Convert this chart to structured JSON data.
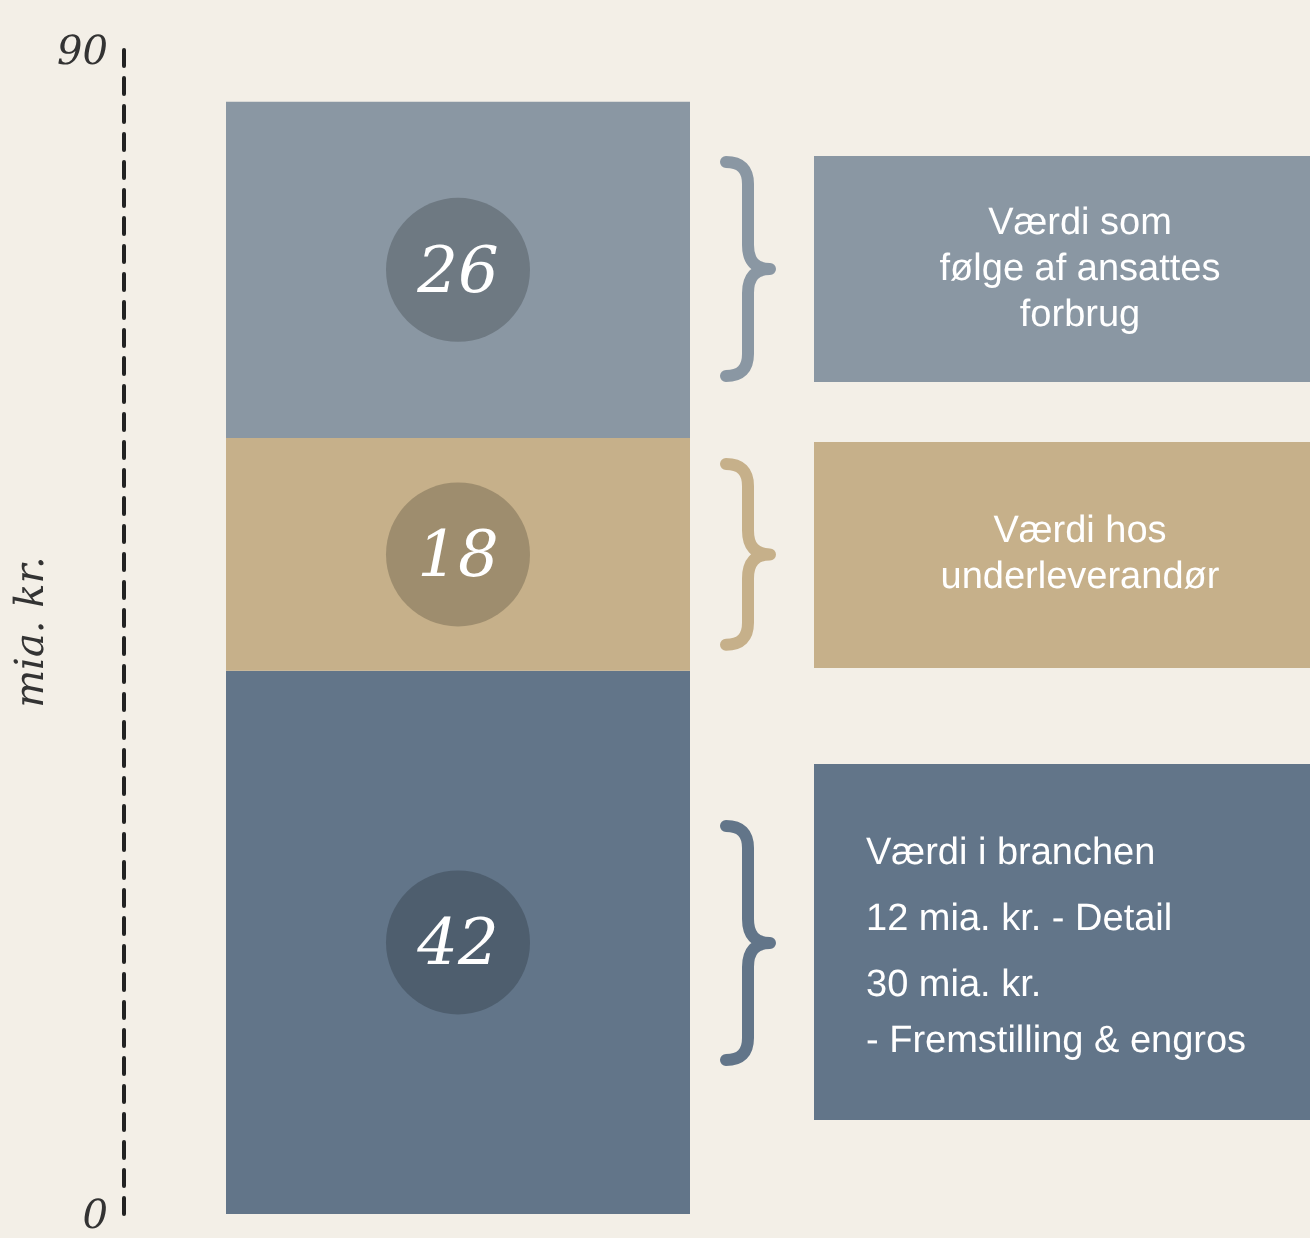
{
  "chart_data": {
    "type": "bar",
    "stacked": true,
    "categories": [
      null
    ],
    "series": [
      {
        "color": "#627589",
        "values": [
          42
        ]
      },
      {
        "color": "#c6b08a",
        "values": [
          18
        ]
      },
      {
        "color": "#8a97a3",
        "values": [
          26
        ]
      }
    ],
    "ylabel": "mia. kr.",
    "ylim": [
      0,
      90
    ],
    "yticks": [
      0,
      90
    ],
    "grid": false,
    "data_labels": true,
    "annotations": [
      "Værdi som\nfølge af ansattes\nforbrug",
      "Værdi hos\nunderleverandør",
      "Værdi i branchen\n12 mia. kr. - Detail\n30 mia. kr.\n- Fremstilling & engros"
    ]
  }
}
